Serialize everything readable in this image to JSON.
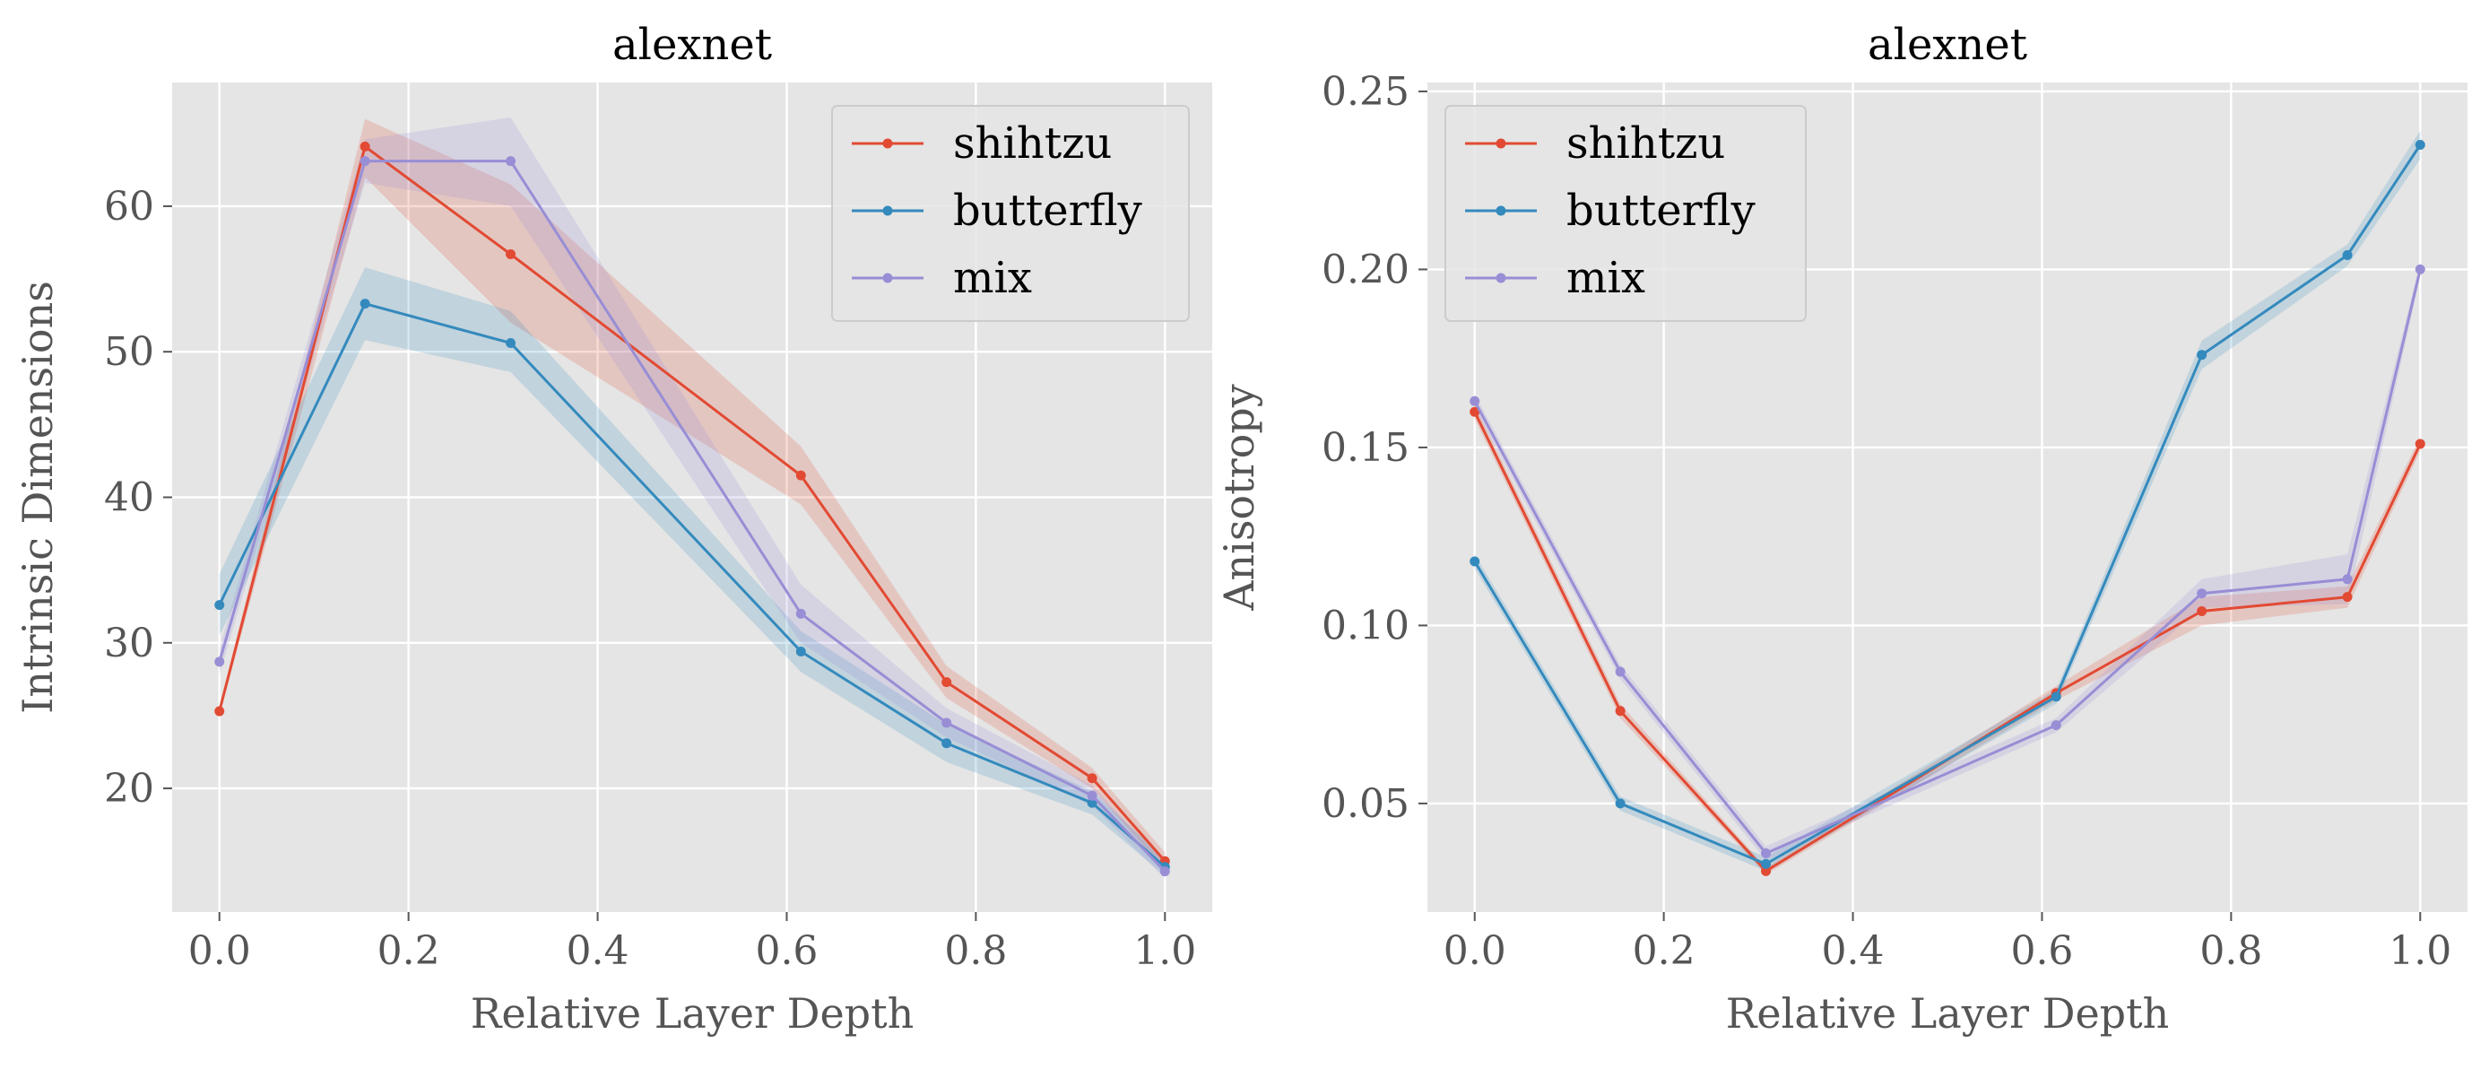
{
  "chart_data": [
    {
      "type": "line",
      "title": "alexnet",
      "xlabel": "Relative Layer Depth",
      "ylabel": "Intrinsic Dimensions",
      "xlim": [
        -0.05,
        1.05
      ],
      "ylim": [
        11.5,
        68.5
      ],
      "xticks": [
        "0.0",
        "0.2",
        "0.4",
        "0.6",
        "0.8",
        "1.0"
      ],
      "xtick_values": [
        0,
        0.2,
        0.4,
        0.6,
        0.8,
        1.0
      ],
      "yticks": [
        "20",
        "30",
        "40",
        "50",
        "60"
      ],
      "ytick_values": [
        20,
        30,
        40,
        50,
        60
      ],
      "grid": true,
      "legend_position": "top-right",
      "series": [
        {
          "name": "shihtzu",
          "color": "#E24A33",
          "x": [
            0,
            0.154,
            0.308,
            0.615,
            0.769,
            0.923,
            1.0
          ],
          "y": [
            25.3,
            64.1,
            56.7,
            41.5,
            27.3,
            20.7,
            15.0
          ],
          "band_low": [
            25.0,
            62.0,
            52.0,
            39.5,
            26.2,
            20.0,
            14.4
          ],
          "band_high": [
            25.6,
            66.0,
            61.5,
            43.5,
            28.4,
            21.4,
            15.6
          ]
        },
        {
          "name": "butterfly",
          "color": "#348ABD",
          "x": [
            0,
            0.154,
            0.308,
            0.615,
            0.769,
            0.923,
            1.0
          ],
          "y": [
            32.6,
            53.3,
            50.6,
            29.4,
            23.1,
            19.0,
            14.6
          ],
          "band_low": [
            30.5,
            50.8,
            48.6,
            28.0,
            21.8,
            18.2,
            14.0
          ],
          "band_high": [
            34.7,
            55.8,
            52.8,
            30.8,
            24.4,
            19.8,
            15.2
          ]
        },
        {
          "name": "mix",
          "color": "#988ED5",
          "x": [
            0,
            0.154,
            0.308,
            0.615,
            0.769,
            0.923,
            1.0
          ],
          "y": [
            28.7,
            63.1,
            63.1,
            32.0,
            24.5,
            19.5,
            14.3
          ],
          "band_low": [
            27.8,
            61.6,
            60.0,
            30.0,
            23.5,
            18.8,
            13.8
          ],
          "band_high": [
            29.6,
            64.6,
            66.1,
            34.0,
            25.5,
            20.2,
            14.8
          ]
        }
      ]
    },
    {
      "type": "line",
      "title": "alexnet",
      "xlabel": "Relative Layer Depth",
      "ylabel": "Anisotropy",
      "xlim": [
        -0.05,
        1.05
      ],
      "ylim": [
        0.0195,
        0.2525
      ],
      "xticks": [
        "0.0",
        "0.2",
        "0.4",
        "0.6",
        "0.8",
        "1.0"
      ],
      "xtick_values": [
        0,
        0.2,
        0.4,
        0.6,
        0.8,
        1.0
      ],
      "yticks": [
        "0.05",
        "0.10",
        "0.15",
        "0.20",
        "0.25"
      ],
      "ytick_values": [
        0.05,
        0.1,
        0.15,
        0.2,
        0.25
      ],
      "grid": true,
      "legend_position": "top-left",
      "series": [
        {
          "name": "shihtzu",
          "color": "#E24A33",
          "x": [
            0,
            0.154,
            0.308,
            0.615,
            0.769,
            0.923,
            1.0
          ],
          "y": [
            0.16,
            0.076,
            0.031,
            0.081,
            0.104,
            0.108,
            0.151
          ],
          "band_low": [
            0.158,
            0.074,
            0.03,
            0.079,
            0.1,
            0.105,
            0.149
          ],
          "band_high": [
            0.162,
            0.078,
            0.032,
            0.083,
            0.108,
            0.111,
            0.153
          ]
        },
        {
          "name": "butterfly",
          "color": "#348ABD",
          "x": [
            0,
            0.154,
            0.308,
            0.615,
            0.769,
            0.923,
            1.0
          ],
          "y": [
            0.118,
            0.05,
            0.033,
            0.08,
            0.176,
            0.204,
            0.235
          ],
          "band_low": [
            0.116,
            0.048,
            0.031,
            0.078,
            0.172,
            0.201,
            0.231
          ],
          "band_high": [
            0.12,
            0.052,
            0.035,
            0.082,
            0.18,
            0.207,
            0.239
          ]
        },
        {
          "name": "mix",
          "color": "#988ED5",
          "x": [
            0,
            0.154,
            0.308,
            0.615,
            0.769,
            0.923,
            1.0
          ],
          "y": [
            0.163,
            0.087,
            0.036,
            0.072,
            0.109,
            0.113,
            0.2
          ],
          "band_low": [
            0.161,
            0.085,
            0.034,
            0.07,
            0.105,
            0.106,
            0.198
          ],
          "band_high": [
            0.165,
            0.089,
            0.038,
            0.074,
            0.113,
            0.12,
            0.202
          ]
        }
      ]
    }
  ]
}
